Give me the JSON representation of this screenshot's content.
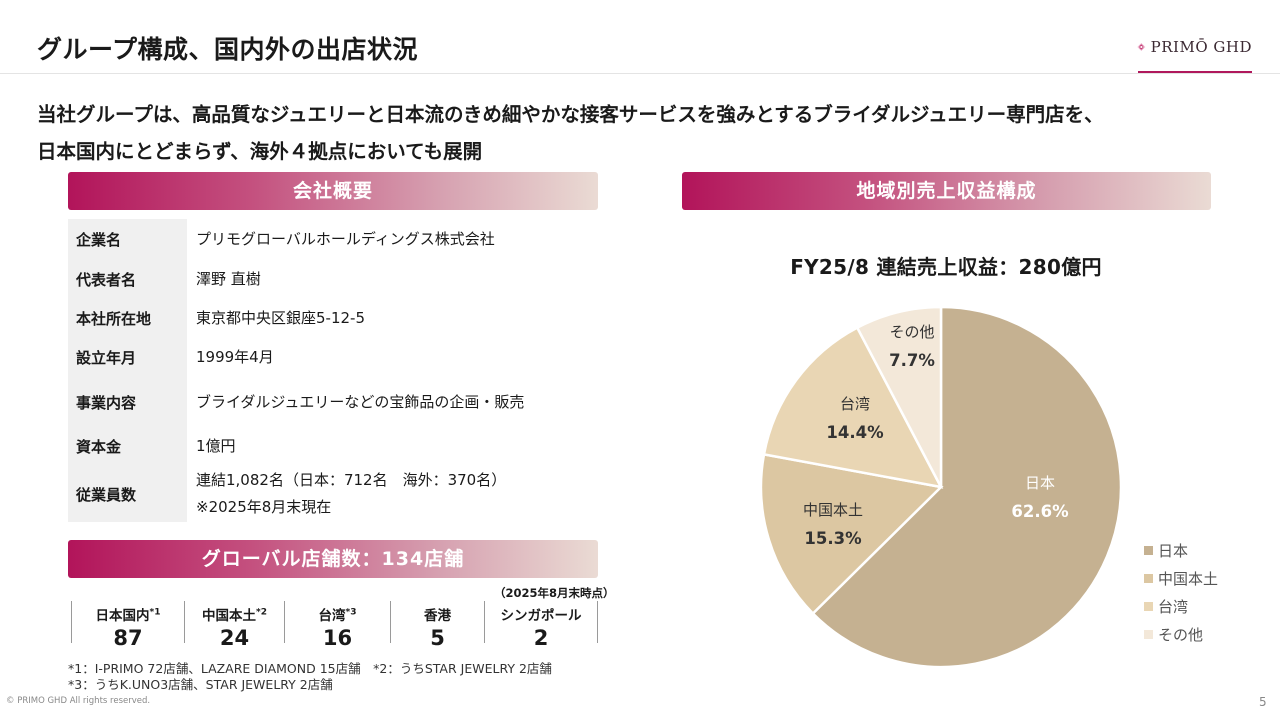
{
  "header": {
    "title": "グループ構成、国内外の出店状況",
    "logo_text": "PRIMŌ GHD"
  },
  "lead": {
    "line1": "当社グループは、高品質なジュエリーと日本流のきめ細やかな接客サービスを強みとするブライダルジュエリー専門店を、",
    "line2": "日本国内にとどまらず、海外４拠点においても展開"
  },
  "company": {
    "heading": "会社概要",
    "rows": [
      {
        "key": "企業名",
        "value": "プリモグローバルホールディングス株式会社",
        "value2": ""
      },
      {
        "key": "代表者名",
        "value": "澤野 直樹",
        "value2": ""
      },
      {
        "key": "本社所在地",
        "value": "東京都中央区銀座5-12-5",
        "value2": ""
      },
      {
        "key": "設立年月",
        "value": "1999年4月",
        "value2": ""
      },
      {
        "key": "事業内容",
        "value": "ブライダルジュエリーなどの宝飾品の企画・販売",
        "value2": ""
      },
      {
        "key": "資本金",
        "value": "1億円",
        "value2": ""
      },
      {
        "key": "従業員数",
        "value": "連結1,082名（日本：712名　海外：370名）",
        "value2": "※2025年8月末現在"
      }
    ]
  },
  "stores": {
    "heading": "グローバル店舗数：134店舗",
    "as_of": "（2025年8月末時点）",
    "items": [
      {
        "label": "日本国内",
        "sup": "*1",
        "count": "87"
      },
      {
        "label": "中国本土",
        "sup": "*2",
        "count": "24"
      },
      {
        "label": "台湾",
        "sup": "*3",
        "count": "16"
      },
      {
        "label": "香港",
        "sup": "",
        "count": "5"
      },
      {
        "label": "シンガポール",
        "sup": "",
        "count": "2"
      }
    ],
    "note1": "*1：I-PRIMO 72店舗、LAZARE DIAMOND 15店舗　*2：うちSTAR JEWELRY 2店舗",
    "note2": "*3：うちK.UNO3店舗、STAR JEWELRY 2店舗"
  },
  "region": {
    "heading": "地域別売上収益構成"
  },
  "chart_data": {
    "type": "pie",
    "title": "FY25/8 連結売上収益：280億円",
    "categories": [
      "日本",
      "中国本土",
      "台湾",
      "その他"
    ],
    "values": [
      62.6,
      15.3,
      14.4,
      7.7
    ],
    "value_labels": [
      "62.6%",
      "15.3%",
      "14.4%",
      "7.7%"
    ],
    "colors": [
      "#c5b191",
      "#dcc7a2",
      "#e9d6b4",
      "#f3e8d9"
    ],
    "legend_position": "bottom-right"
  },
  "footer": {
    "copyright": "© PRIMO GHD All rights reserved.",
    "page": "5"
  }
}
